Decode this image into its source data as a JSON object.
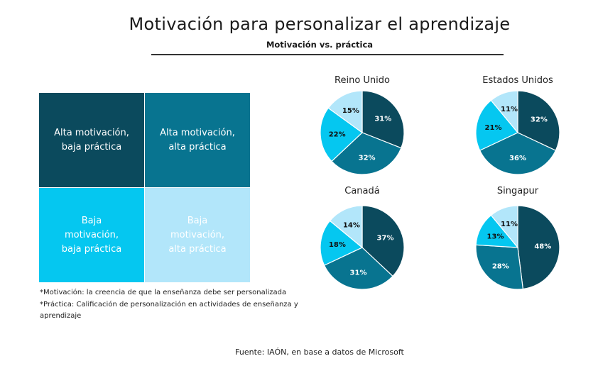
{
  "title": "Motivación para personalizar el aprendizaje",
  "subtitle": "Motivación vs. práctica",
  "quadrants": {
    "top_left": "Alta motivación,\nbaja práctica",
    "top_right": "Alta motivación,\nalta práctica",
    "bottom_left": "Baja\nmotivación,\nbaja práctica",
    "bottom_right": "Baja\nmotivación,\nalta práctica"
  },
  "notes": [
    "*Motivación: la creencia de que la enseñanza debe ser personalizada",
    "*Práctica: Calificación de personalización en actividades de enseñanza y aprendizaje"
  ],
  "source": "Fuente: IAÓN, en base a datos de Microsoft",
  "colors": {
    "alta_motivacion_baja_practica": "#0b4a5d",
    "alta_motivacion_alta_practica": "#087490",
    "baja_motivacion_baja_practica": "#05c7f0",
    "baja_motivacion_alta_practica": "#b2e6fa"
  },
  "chart_data": [
    {
      "type": "pie",
      "title": "Reino Unido",
      "categories": [
        "Alta motivación, baja práctica",
        "Alta motivación, alta práctica",
        "Baja motivación, baja práctica",
        "Baja motivación, alta práctica"
      ],
      "values": [
        31,
        32,
        22,
        15
      ],
      "labels": [
        "31%",
        "32%",
        "22%",
        "15%"
      ]
    },
    {
      "type": "pie",
      "title": "Estados Unidos",
      "categories": [
        "Alta motivación, baja práctica",
        "Alta motivación, alta práctica",
        "Baja motivación, baja práctica",
        "Baja motivación, alta práctica"
      ],
      "values": [
        32,
        36,
        21,
        11
      ],
      "labels": [
        "32%",
        "36%",
        "21%",
        "11%"
      ]
    },
    {
      "type": "pie",
      "title": "Canadá",
      "categories": [
        "Alta motivación, baja práctica",
        "Alta motivación, alta práctica",
        "Baja motivación, baja práctica",
        "Baja motivación, alta práctica"
      ],
      "values": [
        37,
        31,
        18,
        14
      ],
      "labels": [
        "37%",
        "31%",
        "18%",
        "14%"
      ]
    },
    {
      "type": "pie",
      "title": "Singapur",
      "categories": [
        "Alta motivación, baja práctica",
        "Alta motivación, alta práctica",
        "Baja motivación, baja práctica",
        "Baja motivación, alta práctica"
      ],
      "values": [
        48,
        28,
        13,
        11
      ],
      "labels": [
        "48%",
        "28%",
        "13%",
        "11%"
      ]
    }
  ]
}
